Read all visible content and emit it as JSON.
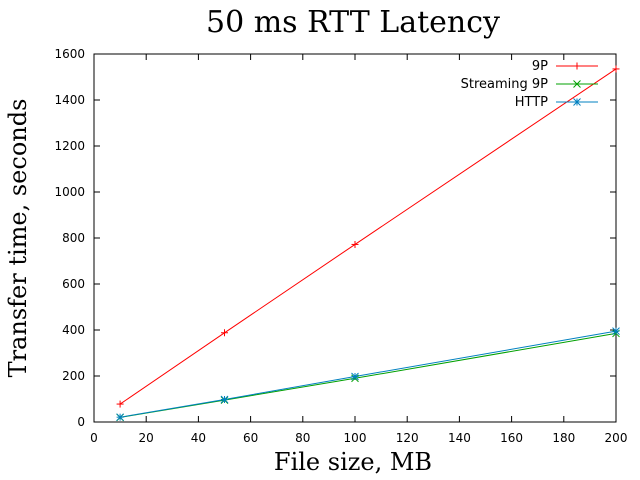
{
  "chart_data": {
    "type": "line",
    "title": "50 ms RTT Latency",
    "xlabel": "File size, MB",
    "ylabel": "Transfer time, seconds",
    "xlim": [
      0,
      200
    ],
    "ylim": [
      0,
      1600
    ],
    "xticks": [
      0,
      20,
      40,
      60,
      80,
      100,
      120,
      140,
      160,
      180,
      200
    ],
    "yticks": [
      0,
      200,
      400,
      600,
      800,
      1000,
      1200,
      1400,
      1600
    ],
    "grid": false,
    "legend_position": "top-right",
    "x": [
      10,
      50,
      100,
      200
    ],
    "series": [
      {
        "name": "9P",
        "color": "#ff0000",
        "marker": "plus",
        "values": [
          78,
          388,
          772,
          1535
        ]
      },
      {
        "name": "Streaming 9P",
        "color": "#00a000",
        "marker": "cross",
        "values": [
          20,
          95,
          190,
          385
        ]
      },
      {
        "name": "HTTP",
        "color": "#0080c0",
        "marker": "star",
        "values": [
          21,
          98,
          198,
          395
        ]
      }
    ]
  }
}
